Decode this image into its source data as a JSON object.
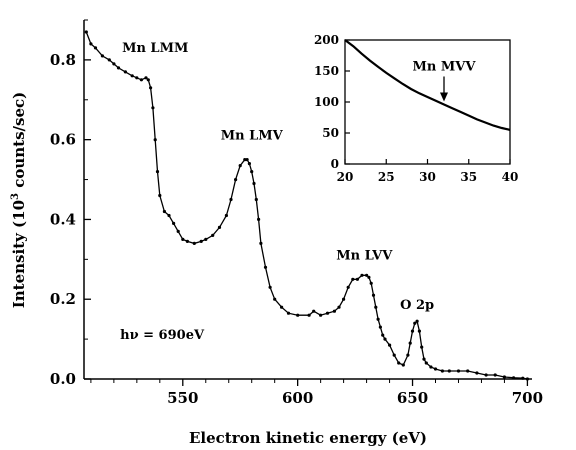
{
  "chart_data": [
    {
      "type": "scatter",
      "xlabel": "Electron kinetic energy (eV)",
      "ylabel": {
        "main": "Intensity (10",
        "sup": "3",
        "rest": " counts/sec)"
      },
      "xlim": [
        507,
        702
      ],
      "ylim": [
        0,
        0.9
      ],
      "xticks": [
        550,
        600,
        650,
        700
      ],
      "yticks": [
        0.0,
        0.2,
        0.4,
        0.6,
        0.8
      ],
      "xtick_labels": [
        "550",
        "600",
        "650",
        "700"
      ],
      "ytick_labels": [
        "0.0",
        "0.2",
        "0.4",
        "0.6",
        "0.8"
      ],
      "grid": false,
      "series": [
        {
          "x": [
            508,
            510,
            512,
            515,
            518,
            520,
            522,
            525,
            528,
            530,
            532,
            534,
            535,
            536,
            537,
            538,
            539,
            540,
            542,
            544,
            546,
            548,
            550,
            552,
            555,
            558,
            560,
            563,
            566,
            569,
            571,
            573,
            575,
            577,
            578,
            579,
            580,
            581,
            582,
            583,
            584,
            586,
            588,
            590,
            593,
            596,
            600,
            605,
            607,
            610,
            613,
            616,
            618,
            620,
            622,
            624,
            626,
            628,
            630,
            631,
            632,
            633,
            634,
            635,
            636,
            637,
            638,
            640,
            642,
            644,
            646,
            648,
            649,
            650,
            651,
            652,
            653,
            654,
            655,
            656,
            658,
            660,
            663,
            666,
            670,
            674,
            678,
            682,
            686,
            690,
            694,
            698,
            700
          ],
          "y": [
            0.87,
            0.84,
            0.83,
            0.81,
            0.8,
            0.79,
            0.78,
            0.77,
            0.76,
            0.755,
            0.75,
            0.755,
            0.75,
            0.73,
            0.68,
            0.6,
            0.52,
            0.46,
            0.42,
            0.41,
            0.39,
            0.37,
            0.35,
            0.345,
            0.34,
            0.345,
            0.35,
            0.36,
            0.38,
            0.41,
            0.45,
            0.5,
            0.535,
            0.55,
            0.55,
            0.54,
            0.52,
            0.49,
            0.45,
            0.4,
            0.34,
            0.28,
            0.23,
            0.2,
            0.18,
            0.165,
            0.16,
            0.16,
            0.17,
            0.16,
            0.165,
            0.17,
            0.18,
            0.2,
            0.23,
            0.25,
            0.25,
            0.26,
            0.26,
            0.255,
            0.24,
            0.21,
            0.18,
            0.15,
            0.13,
            0.11,
            0.1,
            0.085,
            0.06,
            0.04,
            0.035,
            0.06,
            0.09,
            0.12,
            0.14,
            0.145,
            0.12,
            0.08,
            0.05,
            0.04,
            0.03,
            0.025,
            0.02,
            0.02,
            0.02,
            0.02,
            0.015,
            0.01,
            0.01,
            0.005,
            0.003,
            0.002,
            0.0
          ]
        }
      ],
      "annotations": [
        {
          "text": "Mn LMM",
          "x": 538,
          "y": 0.82
        },
        {
          "text": "Mn LMV",
          "x": 580,
          "y": 0.6
        },
        {
          "text": "Mn LVV",
          "x": 629,
          "y": 0.3
        },
        {
          "text": "O 2p",
          "x": 652,
          "y": 0.175
        },
        {
          "text": "hν = 690eV",
          "x": 541,
          "y": 0.1
        }
      ]
    },
    {
      "type": "line",
      "inset": true,
      "xlim": [
        20,
        40
      ],
      "ylim": [
        0,
        200
      ],
      "xticks": [
        20,
        25,
        30,
        35,
        40
      ],
      "yticks": [
        0,
        50,
        100,
        150,
        200
      ],
      "xtick_labels": [
        "20",
        "25",
        "30",
        "35",
        "40"
      ],
      "ytick_labels": [
        "0",
        "50",
        "100",
        "150",
        "200"
      ],
      "series": [
        {
          "x": [
            20,
            21,
            22,
            23,
            24,
            25,
            26,
            27,
            28,
            29,
            30,
            31,
            32,
            33,
            34,
            35,
            36,
            37,
            38,
            39,
            40
          ],
          "y": [
            200,
            190,
            178,
            167,
            157,
            147,
            138,
            129,
            121,
            114,
            108,
            102,
            96,
            90,
            84,
            78,
            72,
            67,
            62,
            58,
            55
          ]
        }
      ],
      "annotations": [
        {
          "text": "Mn MVV",
          "x": 32,
          "y": 96,
          "arrow": true
        }
      ]
    }
  ]
}
